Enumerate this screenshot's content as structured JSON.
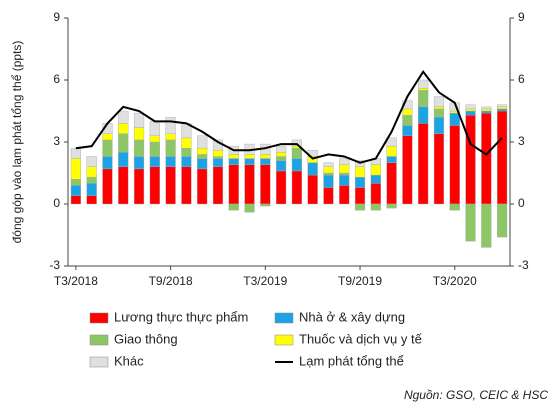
{
  "chart_data": {
    "type": "bar",
    "stacked": true,
    "y_label": "đóng góp vào lạm phát tổng thể (ppts)",
    "source": "Nguồn: GSO, CEIC & HSC",
    "categories": [
      "T3/2018",
      null,
      null,
      null,
      null,
      null,
      "T9/2018",
      null,
      null,
      null,
      null,
      null,
      "T3/2019",
      null,
      null,
      null,
      null,
      null,
      "T9/2019",
      null,
      null,
      null,
      null,
      null,
      "T3/2020",
      null,
      null,
      null
    ],
    "ylim": [
      -3,
      9
    ],
    "yticks": [
      -3,
      0,
      3,
      6,
      9
    ],
    "y2lim": [
      -3,
      9
    ],
    "y2ticks": [
      -3,
      0,
      3,
      6,
      9
    ],
    "series": [
      {
        "name": "Lương thực thực phẩm",
        "color": "#ff0000",
        "values": [
          0.4,
          0.4,
          1.7,
          1.8,
          1.7,
          1.8,
          1.8,
          1.8,
          1.7,
          1.8,
          1.9,
          1.9,
          1.9,
          1.6,
          1.6,
          1.4,
          0.8,
          0.9,
          0.8,
          1.0,
          2.0,
          3.3,
          3.9,
          3.4,
          3.8,
          4.3,
          4.4,
          4.5
        ]
      },
      {
        "name": "Nhà ở & xây dựng",
        "color": "#1ca3e6",
        "values": [
          0.5,
          0.6,
          0.6,
          0.7,
          0.6,
          0.5,
          0.5,
          0.5,
          0.5,
          0.4,
          0.3,
          0.3,
          0.3,
          0.5,
          0.6,
          0.6,
          0.6,
          0.5,
          0.5,
          0.4,
          0.3,
          0.5,
          0.8,
          0.8,
          0.6,
          0.2,
          0.1,
          0.1
        ]
      },
      {
        "name": "Giao thông",
        "color": "#8cc665",
        "values": [
          0.3,
          0.3,
          0.8,
          0.9,
          0.8,
          0.7,
          0.8,
          0.4,
          0.2,
          0.1,
          -0.3,
          -0.4,
          -0.1,
          0.2,
          0.5,
          0.0,
          0.1,
          0.1,
          -0.3,
          -0.3,
          -0.2,
          0.5,
          0.8,
          0.4,
          -0.3,
          -1.8,
          -2.1,
          -1.6
        ]
      },
      {
        "name": "Thuốc và dịch vụ y tế",
        "color": "#ffff00",
        "values": [
          1.0,
          0.5,
          0.3,
          0.5,
          0.6,
          0.3,
          0.3,
          0.5,
          0.3,
          0.3,
          0.2,
          0.2,
          0.2,
          0.2,
          0.1,
          0.3,
          0.3,
          0.4,
          0.5,
          0.5,
          0.5,
          0.3,
          0.1,
          0.1,
          0.1,
          0.1,
          0.1,
          0.1
        ]
      },
      {
        "name": "Khác",
        "color": "#e0e0e0",
        "values": [
          0.5,
          0.5,
          0.5,
          0.6,
          0.7,
          0.7,
          0.8,
          0.7,
          0.6,
          0.5,
          0.4,
          0.5,
          0.5,
          0.3,
          0.3,
          0.3,
          0.2,
          0.3,
          0.3,
          0.3,
          0.4,
          0.4,
          0.4,
          0.5,
          0.4,
          0.2,
          0.1,
          0.1
        ]
      },
      {
        "name": "Lạm phát tổng thể",
        "color": "#000000",
        "type": "line",
        "axis": "y2",
        "values": [
          2.7,
          2.8,
          3.9,
          4.7,
          4.5,
          4.0,
          4.0,
          3.9,
          3.5,
          3.0,
          2.6,
          2.6,
          2.7,
          2.9,
          2.9,
          2.2,
          2.4,
          2.3,
          2.0,
          2.2,
          3.5,
          5.2,
          6.4,
          5.4,
          4.9,
          2.9,
          2.4,
          3.2
        ]
      }
    ]
  }
}
